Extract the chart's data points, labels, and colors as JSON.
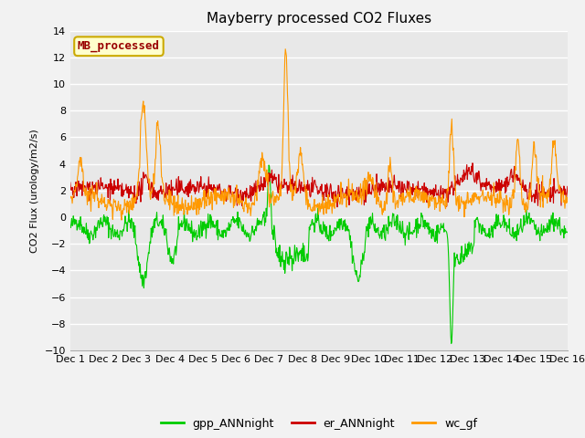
{
  "title": "Mayberry processed CO2 Fluxes",
  "ylabel": "CO2 Flux (urology/m2/s)",
  "ylim": [
    -10,
    14
  ],
  "yticks": [
    -10,
    -8,
    -6,
    -4,
    -2,
    0,
    2,
    4,
    6,
    8,
    10,
    12,
    14
  ],
  "xlim": [
    0,
    15
  ],
  "xtick_labels": [
    "Dec 1",
    "Dec 2",
    "Dec 3",
    "Dec 4",
    "Dec 5",
    "Dec 6",
    "Dec 7",
    "Dec 8",
    "Dec 9",
    "Dec 10",
    "Dec 11",
    "Dec 12",
    "Dec 13",
    "Dec 14",
    "Dec 15",
    "Dec 16"
  ],
  "legend_labels": [
    "gpp_ANNnight",
    "er_ANNnight",
    "wc_gf"
  ],
  "legend_colors": [
    "#00cc00",
    "#cc0000",
    "#ff9900"
  ],
  "watermark_text": "MB_processed",
  "watermark_bg": "#ffffcc",
  "watermark_fg": "#990000",
  "watermark_edge": "#ccaa00",
  "bg_color": "#e8e8e8",
  "fig_color": "#f2f2f2",
  "grid_color": "#ffffff",
  "line_width": 0.8,
  "n_points": 960,
  "title_fontsize": 11,
  "label_fontsize": 8,
  "tick_fontsize": 8,
  "legend_fontsize": 9
}
